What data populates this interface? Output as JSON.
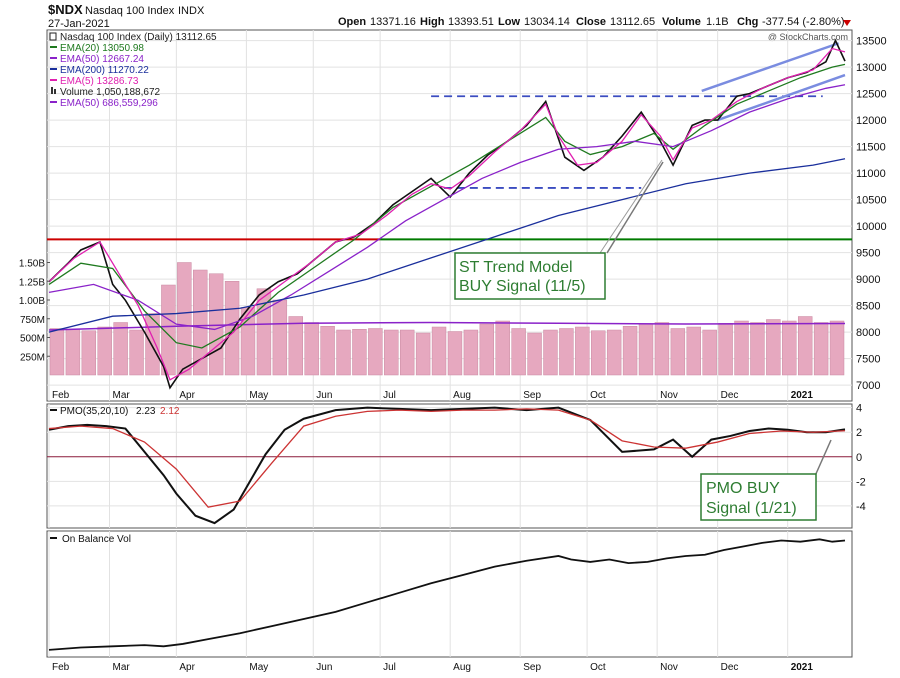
{
  "header": {
    "symbol": "$NDX",
    "name": "Nasdaq 100 Index",
    "exchange": "INDX",
    "date": "27-Jan-2021",
    "open_label": "Open",
    "open": "13371.16",
    "high_label": "High",
    "high": "13393.51",
    "low_label": "Low",
    "low": "13034.14",
    "close_label": "Close",
    "close": "13112.65",
    "volume_label": "Volume",
    "volume": "1.1B",
    "chg_label": "Chg",
    "chg": "-377.54 (-2.80%)",
    "watermark": "@ StockCharts.com"
  },
  "legend": [
    {
      "text": "Nasdaq 100 Index (Daily) 13112.65",
      "color": "#222222"
    },
    {
      "text": "EMA(20) 13050.98",
      "color": "#1f7a1f"
    },
    {
      "text": "EMA(50) 12667.24",
      "color": "#8a22c9"
    },
    {
      "text": "EMA(200) 11270.22",
      "color": "#1a2f9c"
    },
    {
      "text": "EMA(5) 13286.73",
      "color": "#e020b0"
    },
    {
      "text": "Volume 1,050,188,672",
      "color": "#222222"
    },
    {
      "text": "EMA(50) 686,559,296",
      "color": "#8a22c9"
    }
  ],
  "annotations": [
    {
      "text": "ST Trend Model",
      "line2": "BUY Signal (11/5)"
    },
    {
      "text": "PMO BUY",
      "line2": "Signal (1/21)"
    }
  ],
  "pmo_panel": {
    "label": "PMO(35,20,10)",
    "value1": "2.23",
    "value2": "2.12"
  },
  "obv_panel": {
    "label": "On Balance Vol"
  },
  "chart_data": [
    {
      "type": "line",
      "panel": "price",
      "title": "Nasdaq 100 Index (Daily)",
      "x_ticks": [
        "Feb",
        "Mar",
        "Apr",
        "May",
        "Jun",
        "Jul",
        "Aug",
        "Sep",
        "Oct",
        "Nov",
        "Dec",
        "2021"
      ],
      "y_ticks": [
        7000,
        7500,
        8000,
        8500,
        9000,
        9500,
        10000,
        10500,
        11000,
        11500,
        12000,
        12500,
        13000,
        13500
      ],
      "ylim": [
        6700,
        13700
      ],
      "volume_ticks": [
        "250M",
        "500M",
        "750M",
        "1.00B",
        "1.25B",
        "1.50B"
      ],
      "series": [
        {
          "name": "Nasdaq 100 Index (Daily)",
          "x": [
            0,
            6,
            10,
            16,
            20,
            24,
            30,
            36,
            38,
            42,
            48,
            54,
            60,
            66,
            72,
            78,
            84,
            90,
            96,
            102,
            108,
            114,
            120,
            126,
            132,
            138,
            144,
            150,
            156,
            162,
            168,
            174,
            180,
            186,
            192,
            196,
            202,
            206,
            210,
            216,
            220,
            226,
            232,
            238,
            244,
            247,
            250
          ],
          "values": [
            8950,
            9300,
            9550,
            9700,
            8900,
            8600,
            8000,
            7350,
            6950,
            7300,
            7500,
            7700,
            8250,
            8700,
            8950,
            9100,
            9400,
            9700,
            9800,
            10050,
            10400,
            10650,
            10900,
            10550,
            11000,
            11350,
            11600,
            11900,
            12350,
            11300,
            11050,
            11300,
            11700,
            12150,
            11600,
            11150,
            11900,
            12000,
            12000,
            12450,
            12500,
            12650,
            12800,
            12900,
            13100,
            13500,
            13112.65
          ],
          "color": "#111111"
        },
        {
          "name": "EMA(20)",
          "x": [
            0,
            10,
            20,
            30,
            40,
            48,
            60,
            72,
            84,
            96,
            108,
            120,
            132,
            144,
            156,
            162,
            170,
            180,
            190,
            196,
            206,
            216,
            226,
            236,
            246,
            250
          ],
          "values": [
            8900,
            9300,
            9200,
            8400,
            7800,
            7700,
            8100,
            8750,
            9250,
            9750,
            10350,
            10750,
            11150,
            11600,
            12050,
            11600,
            11350,
            11500,
            11750,
            11450,
            11900,
            12300,
            12550,
            12800,
            13000,
            13050.98
          ],
          "color": "#1f7a1f"
        },
        {
          "name": "EMA(50)",
          "x": [
            0,
            14,
            28,
            40,
            52,
            64,
            76,
            88,
            100,
            112,
            124,
            136,
            148,
            160,
            172,
            184,
            196,
            208,
            220,
            232,
            244,
            250
          ],
          "values": [
            8750,
            8900,
            8600,
            8150,
            8050,
            8300,
            8700,
            9150,
            9600,
            10100,
            10500,
            10900,
            11200,
            11450,
            11500,
            11600,
            11500,
            11800,
            12150,
            12400,
            12600,
            12667.24
          ],
          "color": "#8a22c9"
        },
        {
          "name": "EMA(200)",
          "x": [
            0,
            20,
            40,
            60,
            80,
            100,
            120,
            140,
            160,
            180,
            200,
            220,
            240,
            250
          ],
          "values": [
            8000,
            8300,
            8350,
            8450,
            8700,
            9000,
            9400,
            9800,
            10200,
            10500,
            10800,
            11000,
            11150,
            11270.22
          ],
          "color": "#1a2f9c"
        },
        {
          "name": "EMA(5)",
          "x": [
            0,
            8,
            16,
            22,
            28,
            34,
            38,
            44,
            50,
            58,
            66,
            74,
            82,
            90,
            98,
            106,
            114,
            120,
            126,
            132,
            140,
            148,
            156,
            160,
            166,
            172,
            180,
            186,
            192,
            196,
            202,
            208,
            216,
            224,
            232,
            240,
            246,
            250
          ],
          "values": [
            8950,
            9400,
            9700,
            9100,
            8500,
            7700,
            7100,
            7300,
            7600,
            8000,
            8600,
            8950,
            9300,
            9700,
            9850,
            10200,
            10600,
            10800,
            10700,
            10950,
            11400,
            11800,
            12300,
            11700,
            11150,
            11200,
            11600,
            12100,
            11700,
            11250,
            11850,
            12000,
            12350,
            12600,
            12800,
            12950,
            13350,
            13286.73
          ],
          "color": "#e020b0"
        }
      ],
      "volume_series": {
        "name": "Volume",
        "color": "#e6a8bf",
        "values": [
          620,
          610,
          590,
          640,
          700,
          600,
          820,
          1200,
          1500,
          1400,
          1350,
          1250,
          900,
          1150,
          1000,
          780,
          700,
          650,
          600,
          610,
          620,
          600,
          600,
          560,
          640,
          580,
          600,
          680,
          720,
          620,
          560,
          600,
          620,
          640,
          590,
          600,
          650,
          680,
          700,
          620,
          640,
          600,
          690,
          720,
          700,
          740,
          720,
          780,
          700,
          720
        ]
      },
      "volume_ema": {
        "name": "EMA(50)",
        "color": "#8a22c9",
        "x": [
          0,
          40,
          80,
          120,
          160,
          200,
          250
        ],
        "values": [
          600,
          650,
          690,
          700,
          690,
          680,
          686.56
        ]
      },
      "reference_lines": [
        {
          "value": 9750,
          "color": "#cc0000",
          "span": "Feb-Jul"
        },
        {
          "value": 9750,
          "color": "#007a00",
          "span": "Jul-2021"
        },
        {
          "value": 12450,
          "style": "dashed"
        },
        {
          "value": 10720,
          "style": "dashed"
        }
      ]
    },
    {
      "type": "line",
      "panel": "pmo",
      "title": "PMO(35,20,10)",
      "y_ticks": [
        -4,
        -2,
        0,
        2,
        4
      ],
      "ylim": [
        -5.8,
        4.3
      ],
      "series": [
        {
          "name": "PMO",
          "x": [
            0,
            6,
            12,
            18,
            24,
            30,
            36,
            40,
            46,
            52,
            58,
            62,
            68,
            74,
            80,
            90,
            100,
            110,
            120,
            130,
            140,
            150,
            160,
            170,
            180,
            190,
            196,
            202,
            208,
            214,
            220,
            226,
            232,
            238,
            244,
            250
          ],
          "values": [
            2.2,
            2.5,
            2.6,
            2.5,
            2.3,
            0.4,
            -1.5,
            -3.0,
            -4.8,
            -5.4,
            -4.3,
            -2.5,
            0.2,
            2.2,
            3.1,
            3.8,
            4.0,
            3.9,
            3.8,
            3.9,
            4.0,
            3.8,
            4.0,
            3.0,
            0.4,
            0.6,
            1.4,
            0.0,
            1.4,
            1.7,
            2.1,
            2.3,
            2.2,
            2.0,
            2.0,
            2.23
          ],
          "color": "#111111"
        },
        {
          "name": "Signal",
          "x": [
            0,
            10,
            20,
            30,
            40,
            50,
            60,
            70,
            80,
            90,
            100,
            110,
            120,
            130,
            140,
            150,
            160,
            170,
            180,
            190,
            200,
            210,
            220,
            230,
            240,
            250
          ],
          "values": [
            2.3,
            2.5,
            2.3,
            1.2,
            -1.0,
            -4.1,
            -3.6,
            -0.5,
            2.5,
            3.3,
            3.7,
            3.8,
            3.7,
            3.8,
            3.8,
            3.9,
            3.8,
            3.0,
            1.3,
            0.8,
            0.7,
            1.2,
            1.9,
            2.1,
            2.0,
            2.12
          ],
          "color": "#cc3333"
        }
      ]
    },
    {
      "type": "line",
      "panel": "obv",
      "title": "On Balance Vol",
      "series": [
        {
          "name": "On Balance Vol",
          "x": [
            0,
            10,
            20,
            30,
            36,
            42,
            50,
            60,
            70,
            80,
            90,
            100,
            110,
            120,
            130,
            140,
            150,
            160,
            164,
            170,
            176,
            182,
            188,
            194,
            200,
            206,
            212,
            218,
            224,
            230,
            236,
            242,
            246,
            250
          ],
          "values": [
            0,
            2,
            3,
            4,
            3,
            5,
            9,
            14,
            20,
            26,
            32,
            40,
            48,
            56,
            63,
            70,
            75,
            79,
            76,
            74,
            76,
            73,
            74,
            77,
            79,
            80,
            84,
            87,
            90,
            92,
            91,
            93,
            91,
            92
          ],
          "color": "#111111"
        }
      ]
    }
  ]
}
